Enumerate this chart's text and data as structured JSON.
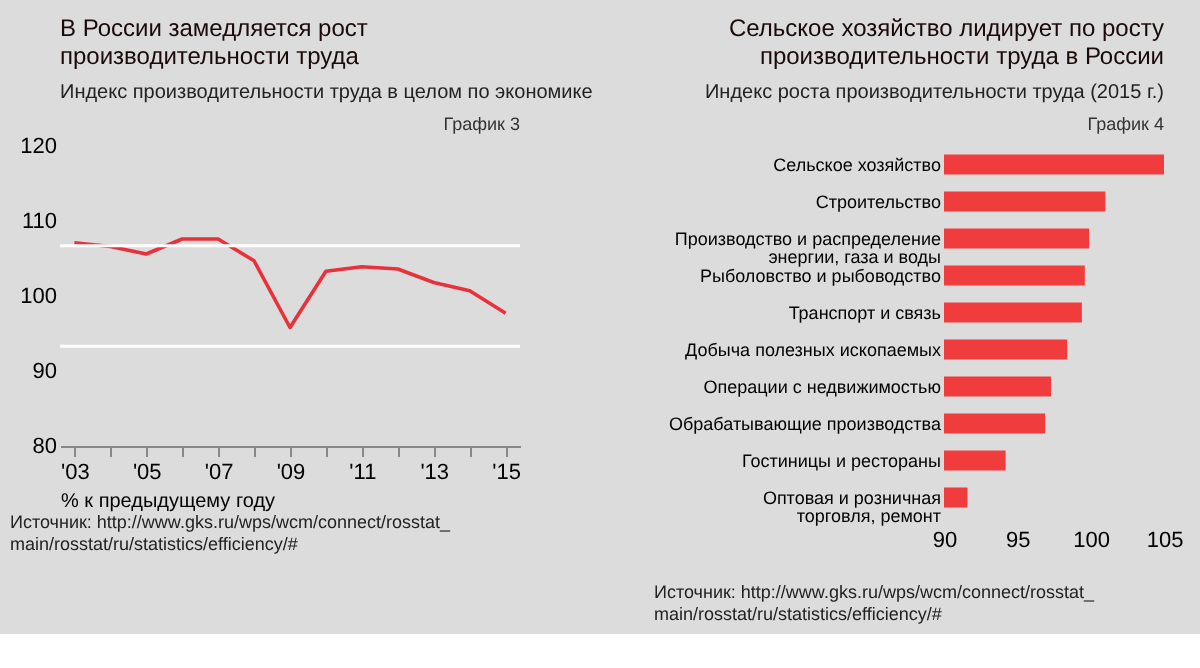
{
  "chart_data": [
    {
      "type": "line",
      "title": "В России замедляется рост производительности труда",
      "subtitle": "Индекс производительности труда в целом по экономике",
      "xlabel": "% к предыдущему году",
      "x": [
        2003,
        2004,
        2005,
        2006,
        2007,
        2008,
        2009,
        2010,
        2011,
        2012,
        2013,
        2014,
        2015
      ],
      "series": [
        {
          "color": "#e8313a",
          "values": [
            107.1,
            106.6,
            105.6,
            107.6,
            107.6,
            104.7,
            95.8,
            103.3,
            103.9,
            103.6,
            101.8,
            100.7,
            97.7
          ]
        }
      ],
      "xlim": [
        2002.6,
        2015.4
      ],
      "xticks": [
        {
          "value": 2003,
          "label": "'03"
        },
        {
          "value": 2004,
          "label": null
        },
        {
          "value": 2005,
          "label": "'05"
        },
        {
          "value": 2006,
          "label": null
        },
        {
          "value": 2007,
          "label": "'07"
        },
        {
          "value": 2008,
          "label": null
        },
        {
          "value": 2009,
          "label": "'09"
        },
        {
          "value": 2010,
          "label": null
        },
        {
          "value": 2011,
          "label": "'11"
        },
        {
          "value": 2012,
          "label": null
        },
        {
          "value": 2013,
          "label": "'13"
        },
        {
          "value": 2014,
          "label": null
        },
        {
          "value": 2015,
          "label": "'15"
        }
      ],
      "ylim": [
        80,
        120
      ],
      "yticks": [
        80,
        90,
        100,
        110,
        120
      ],
      "ref_lines": [
        {
          "axis": "y",
          "value": 106.7,
          "color": "#ffffff"
        },
        {
          "axis": "y",
          "value": 93.3,
          "color": "#ffffff"
        }
      ],
      "annotations": [
        "График 3",
        "Источник: http://www.gks.ru/wps/wcm/connect/rosstat_main/rosstat/ru/statistics/efficiency/#"
      ]
    },
    {
      "type": "bar",
      "orientation": "horizontal",
      "title": "Сельское хозяйство лидирует по росту производительности труда в России",
      "subtitle": "Индекс роста производительности труда (2015 г.)",
      "categories": [
        "Сельское хозяйство",
        "Строительство",
        "Производство и распределение\nэнергии, газа и воды",
        "Рыболовство и рыбоводство",
        "Транспорт и связь",
        "Добыча полезных ископаемых",
        "Операции с недвижимостью",
        "Обрабатывающие производства",
        "Гостиницы и рестораны",
        "Оптовая и розничная\nторговля, ремонт"
      ],
      "values": [
        105.0,
        101.0,
        99.9,
        99.6,
        99.4,
        98.4,
        97.3,
        96.9,
        94.2,
        91.6
      ],
      "color": "#f03c3c",
      "xlim": [
        90,
        105
      ],
      "xticks": [
        90,
        95,
        100,
        105
      ],
      "annotations": [
        "График 4",
        "Источник: http://www.gks.ru/wps/wcm/connect/rosstat_main/rosstat/ru/statistics/efficiency/#"
      ]
    }
  ]
}
